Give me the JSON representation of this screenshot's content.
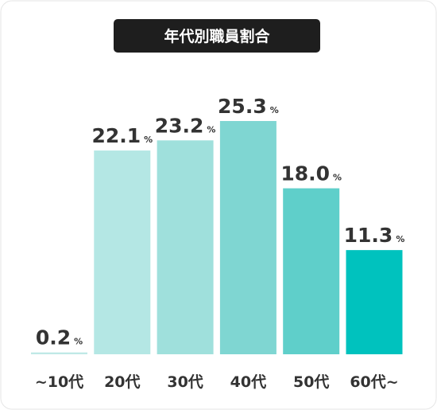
{
  "chart_data": {
    "type": "bar",
    "title": "年代別職員割合",
    "categories": [
      "~10代",
      "20代",
      "30代",
      "40代",
      "50代",
      "60代~"
    ],
    "values": [
      0.2,
      22.1,
      23.2,
      25.3,
      18.0,
      11.3
    ],
    "value_labels": [
      "0.2%",
      "22.1%",
      "23.2%",
      "25.3%",
      "18.0%",
      "11.3%"
    ],
    "colors": [
      "#bfe9e6",
      "#b4e7e4",
      "#9fe0dc",
      "#7fd6d2",
      "#5fcfca",
      "#00c2be"
    ]
  }
}
